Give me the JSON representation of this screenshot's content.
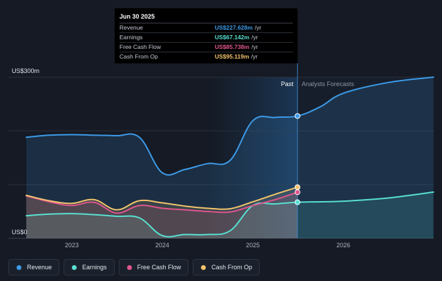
{
  "chart_data": {
    "type": "area",
    "y_unit_label": "US$300m",
    "y_zero_label": "US$0",
    "ylim": [
      0,
      300
    ],
    "x_ticks": [
      "2023",
      "2024",
      "2025",
      "2026"
    ],
    "divider_labels": {
      "past": "Past",
      "forecast": "Analysts Forecasts"
    },
    "divider_date": "2025-06-30",
    "grid": true,
    "legend_placement": "bottom-left",
    "series": [
      {
        "name": "Revenue",
        "color": "#3d9be9",
        "points": [
          [
            "2022-07-01",
            188
          ],
          [
            "2022-10-01",
            192
          ],
          [
            "2023-01-01",
            193
          ],
          [
            "2023-04-01",
            192
          ],
          [
            "2023-07-01",
            191
          ],
          [
            "2023-10-01",
            188
          ],
          [
            "2024-01-01",
            122
          ],
          [
            "2024-04-01",
            128
          ],
          [
            "2024-07-01",
            139
          ],
          [
            "2024-10-01",
            145
          ],
          [
            "2025-01-01",
            219
          ],
          [
            "2025-04-01",
            225
          ],
          [
            "2025-06-30",
            227.628
          ],
          [
            "2025-10-01",
            245
          ],
          [
            "2026-01-01",
            270
          ],
          [
            "2026-07-01",
            290
          ],
          [
            "2026-12-31",
            300
          ]
        ]
      },
      {
        "name": "Earnings",
        "color": "#58e0d2",
        "points": [
          [
            "2022-07-01",
            42
          ],
          [
            "2022-10-01",
            45
          ],
          [
            "2023-01-01",
            46
          ],
          [
            "2023-04-01",
            44
          ],
          [
            "2023-07-01",
            41
          ],
          [
            "2023-10-01",
            38
          ],
          [
            "2024-01-01",
            5
          ],
          [
            "2024-04-01",
            7
          ],
          [
            "2024-07-01",
            7
          ],
          [
            "2024-10-01",
            14
          ],
          [
            "2025-01-01",
            61
          ],
          [
            "2025-04-01",
            64
          ],
          [
            "2025-06-30",
            67.142
          ],
          [
            "2025-10-01",
            68
          ],
          [
            "2026-01-01",
            69
          ],
          [
            "2026-07-01",
            75
          ],
          [
            "2026-12-31",
            86
          ]
        ]
      },
      {
        "name": "Free Cash Flow",
        "color": "#e0568e",
        "points": [
          [
            "2022-07-01",
            79
          ],
          [
            "2022-10-01",
            68
          ],
          [
            "2023-01-01",
            61
          ],
          [
            "2023-04-01",
            67
          ],
          [
            "2023-07-01",
            47
          ],
          [
            "2023-10-01",
            61
          ],
          [
            "2024-01-01",
            56
          ],
          [
            "2024-04-01",
            53
          ],
          [
            "2024-07-01",
            50
          ],
          [
            "2024-10-01",
            49
          ],
          [
            "2025-01-01",
            61
          ],
          [
            "2025-04-01",
            72
          ],
          [
            "2025-06-30",
            85.738
          ]
        ]
      },
      {
        "name": "Cash From Op",
        "color": "#f2c46d",
        "points": [
          [
            "2022-07-01",
            80
          ],
          [
            "2022-10-01",
            70
          ],
          [
            "2023-01-01",
            65
          ],
          [
            "2023-04-01",
            72
          ],
          [
            "2023-07-01",
            53
          ],
          [
            "2023-10-01",
            70
          ],
          [
            "2024-01-01",
            66
          ],
          [
            "2024-04-01",
            60
          ],
          [
            "2024-07-01",
            56
          ],
          [
            "2024-10-01",
            55
          ],
          [
            "2025-01-01",
            68
          ],
          [
            "2025-04-01",
            82
          ],
          [
            "2025-06-30",
            95.119
          ]
        ]
      }
    ]
  },
  "tooltip": {
    "date": "Jun 30 2025",
    "rows": [
      {
        "label": "Revenue",
        "value": "US$227.628m",
        "unit": "/yr",
        "color": "#3d9be9"
      },
      {
        "label": "Earnings",
        "value": "US$67.142m",
        "unit": "/yr",
        "color": "#58e0d2"
      },
      {
        "label": "Free Cash Flow",
        "value": "US$85.738m",
        "unit": "/yr",
        "color": "#e0568e"
      },
      {
        "label": "Cash From Op",
        "value": "US$95.119m",
        "unit": "/yr",
        "color": "#f2c46d"
      }
    ]
  },
  "legend": [
    {
      "label": "Revenue",
      "color": "#3d9be9"
    },
    {
      "label": "Earnings",
      "color": "#58e0d2"
    },
    {
      "label": "Free Cash Flow",
      "color": "#e0568e"
    },
    {
      "label": "Cash From Op",
      "color": "#f2c46d"
    }
  ]
}
